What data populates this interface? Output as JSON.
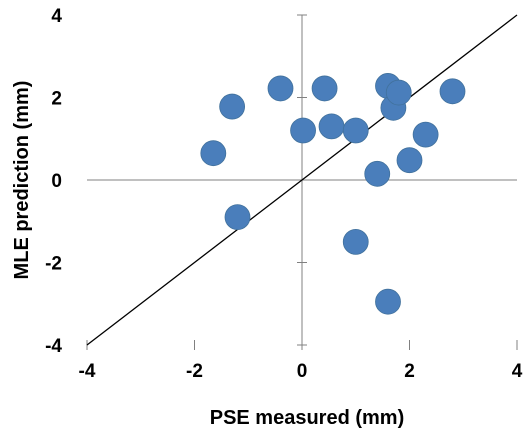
{
  "chart_data": {
    "type": "scatter",
    "title": "",
    "xlabel": "PSE measured (mm)",
    "ylabel": "MLE prediction (mm)",
    "xlim": [
      -4,
      4
    ],
    "ylim": [
      -4,
      4
    ],
    "x_ticks": [
      "-4",
      "-2",
      "0",
      "2",
      "4"
    ],
    "y_ticks": [
      "-4",
      "-2",
      "0",
      "2",
      "4"
    ],
    "grid": false,
    "legend": "none",
    "reference_line": {
      "name": "",
      "points": [
        [
          -4,
          -4
        ],
        [
          4,
          4
        ]
      ],
      "color": "#000000"
    },
    "marker_color": "#4a7ebb",
    "series": [
      {
        "name": "",
        "points": [
          {
            "x": -1.65,
            "y": 0.65
          },
          {
            "x": -1.3,
            "y": 1.78
          },
          {
            "x": -1.2,
            "y": -0.9
          },
          {
            "x": -0.4,
            "y": 2.22
          },
          {
            "x": 0.02,
            "y": 1.2
          },
          {
            "x": 0.42,
            "y": 2.22
          },
          {
            "x": 0.55,
            "y": 1.3
          },
          {
            "x": 1.0,
            "y": 1.2
          },
          {
            "x": 1.0,
            "y": -1.5
          },
          {
            "x": 1.4,
            "y": 0.15
          },
          {
            "x": 1.6,
            "y": 2.28
          },
          {
            "x": 1.7,
            "y": 1.75
          },
          {
            "x": 1.8,
            "y": 2.12
          },
          {
            "x": 2.0,
            "y": 0.48
          },
          {
            "x": 2.3,
            "y": 1.1
          },
          {
            "x": 2.8,
            "y": 2.15
          },
          {
            "x": 1.6,
            "y": -2.95
          }
        ]
      }
    ]
  }
}
